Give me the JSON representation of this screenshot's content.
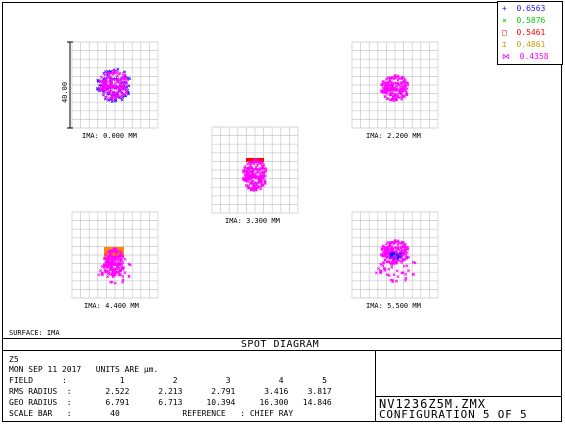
{
  "legend": [
    {
      "symbol": "+",
      "value": "0.6563",
      "color": "#1a1aff"
    },
    {
      "symbol": "×",
      "value": "0.5876",
      "color": "#00cc00"
    },
    {
      "symbol": "□",
      "value": "0.5461",
      "color": "#ff0000"
    },
    {
      "symbol": "⌶",
      "value": "0.4861",
      "color": "#c8a000"
    },
    {
      "symbol": "⋈",
      "value": "0.4358",
      "color": "#ff00ff"
    }
  ],
  "scale_bar_label": "40.00",
  "fields": [
    {
      "label": "IMA: 0.000 MM"
    },
    {
      "label": "IMA: 2.200 MM"
    },
    {
      "label": "IMA: 3.300 MM"
    },
    {
      "label": "IMA: 4.400 MM"
    },
    {
      "label": "IMA: 5.500 MM"
    }
  ],
  "surface": "SURFACE: IMA",
  "title": "SPOT DIAGRAM",
  "info": {
    "line1": "Z5",
    "line2": "MON SEP 11 2017   UNITS ARE µm.",
    "field_row": "FIELD      :           1          2          3          4        5",
    "rms_row": "RMS RADIUS  :       2.522      2.213      2.791      3.416    3.817",
    "geo_row": "GEO RADIUS  :       6.791      6.713     10.394     16.300   14.846",
    "scale_row": "SCALE BAR   :        40             REFERENCE   : CHIEF RAY"
  },
  "file": {
    "name": "NV1236Z5M.ZMX",
    "config": "CONFIGURATION 5 OF 5"
  }
}
